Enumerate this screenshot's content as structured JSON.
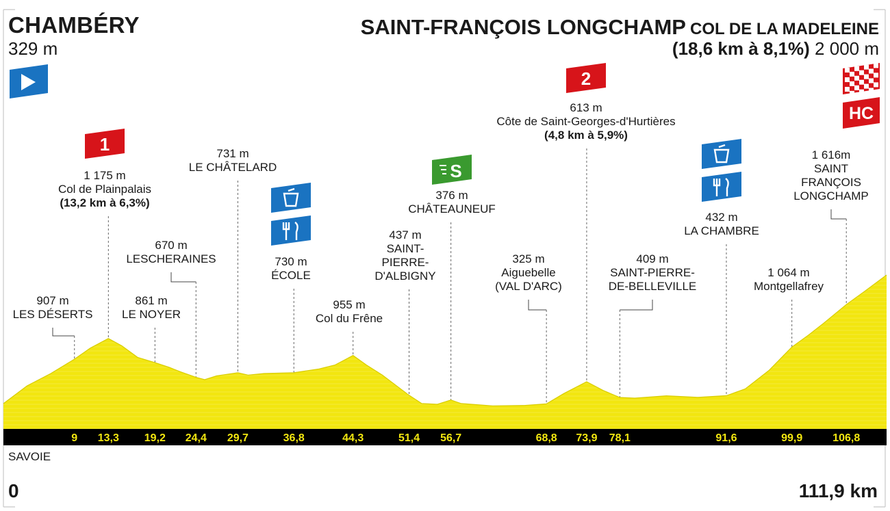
{
  "header": {
    "start_name": "CHAMBÉRY",
    "start_alt": "329 m",
    "finish_name": "SAINT-FRANÇOIS LONGCHAMP",
    "finish_col": "COL DE LA MADELEINE",
    "finish_climb": "(18,6 km à 8,1%)",
    "finish_alt": "2 000 m"
  },
  "footer": {
    "region": "SAVOIE",
    "km_start": "0",
    "km_end": "111,9 km"
  },
  "colors": {
    "profile_fill": "#f2e610",
    "profile_fill_light": "#fff58a",
    "axis_bar": "#000000",
    "km_label": "#f2e610",
    "climb_badge": "#d7141a",
    "sprint_badge": "#3a9a2f",
    "feed_badge": "#1a73c1",
    "start_badge": "#1a73c1"
  },
  "chart_data": {
    "type": "area",
    "title": "",
    "xlabel": "",
    "ylabel": "",
    "xlim": [
      0,
      111.9
    ],
    "ylim": [
      0,
      2000
    ],
    "profile": {
      "x": [
        0,
        3,
        6,
        9,
        11,
        13.3,
        15,
        17,
        19.2,
        21,
        22.5,
        24.4,
        25.5,
        27,
        29.7,
        31,
        33,
        36.8,
        40,
        42,
        44.3,
        46,
        48,
        51.4,
        53,
        55,
        56.7,
        58,
        62,
        66,
        68.8,
        71,
        73.9,
        76,
        78.1,
        80,
        84,
        88,
        91.6,
        94,
        97,
        99.9,
        102,
        104,
        106.8,
        109,
        111.9
      ],
      "y": [
        329,
        560,
        720,
        907,
        1050,
        1175,
        1080,
        930,
        861,
        800,
        740,
        670,
        640,
        690,
        731,
        700,
        720,
        730,
        780,
        830,
        955,
        830,
        700,
        437,
        330,
        320,
        376,
        330,
        300,
        305,
        325,
        460,
        613,
        500,
        409,
        400,
        430,
        410,
        432,
        520,
        760,
        1064,
        1220,
        1380,
        1616,
        1780,
        2000
      ]
    },
    "km_ticks": [
      9,
      13.3,
      19.2,
      24.4,
      29.7,
      36.8,
      44.3,
      51.4,
      56.7,
      68.8,
      73.9,
      78.1,
      91.6,
      99.9,
      106.8
    ],
    "km_tick_labels": [
      "9",
      "13,3",
      "19,2",
      "24,4",
      "29,7",
      "36,8",
      "44,3",
      "51,4",
      "56,7",
      "68,8",
      "73,9",
      "78,1",
      "91,6",
      "99,9",
      "106,8"
    ],
    "places": [
      {
        "km": 9,
        "alt": "907 m",
        "name": [
          "LES DÉSERTS"
        ],
        "bold": ""
      },
      {
        "km": 13.3,
        "alt": "1 175 m",
        "name": [
          "Col de Plainpalais"
        ],
        "bold": "(13,2 km à 6,3%)",
        "badge": "climb",
        "badge_text": "1"
      },
      {
        "km": 19.2,
        "alt": "861 m",
        "name": [
          "LE NOYER"
        ],
        "bold": ""
      },
      {
        "km": 24.4,
        "alt": "670 m",
        "name": [
          "LESCHERAINES"
        ],
        "bold": ""
      },
      {
        "km": 29.7,
        "alt": "731 m",
        "name": [
          "LE CHÂTELARD"
        ],
        "bold": ""
      },
      {
        "km": 36.8,
        "alt": "730 m",
        "name": [
          "ÉCOLE"
        ],
        "bold": "",
        "badge": "feed"
      },
      {
        "km": 44.3,
        "alt": "955 m",
        "name": [
          "Col du Frêne"
        ],
        "bold": ""
      },
      {
        "km": 51.4,
        "alt": "437 m",
        "name": [
          "SAINT-",
          "PIERRE-",
          "D'ALBIGNY"
        ],
        "bold": ""
      },
      {
        "km": 56.7,
        "alt": "376 m",
        "name": [
          "CHÂTEAUNEUF"
        ],
        "bold": "",
        "badge": "sprint",
        "badge_text": "S"
      },
      {
        "km": 68.8,
        "alt": "325 m",
        "name": [
          "Aiguebelle",
          "(VAL D'ARC)"
        ],
        "bold": ""
      },
      {
        "km": 73.9,
        "alt": "613 m",
        "name": [
          "Côte de Saint-Georges-d'Hurtières"
        ],
        "bold": "(4,8 km à 5,9%)",
        "badge": "climb",
        "badge_text": "2"
      },
      {
        "km": 78.1,
        "alt": "409 m",
        "name": [
          "SAINT-PIERRE-",
          "DE-BELLEVILLE"
        ],
        "bold": ""
      },
      {
        "km": 91.6,
        "alt": "432 m",
        "name": [
          "LA CHAMBRE"
        ],
        "bold": "",
        "badge": "feed"
      },
      {
        "km": 99.9,
        "alt": "1 064 m",
        "name": [
          "Montgellafrey"
        ],
        "bold": ""
      },
      {
        "km": 106.8,
        "alt": "1 616m",
        "name": [
          "SAINT",
          "FRANÇOIS",
          "LONGCHAMP"
        ],
        "bold": ""
      }
    ],
    "finish_badge": "HC",
    "sprint_badge": "S"
  }
}
